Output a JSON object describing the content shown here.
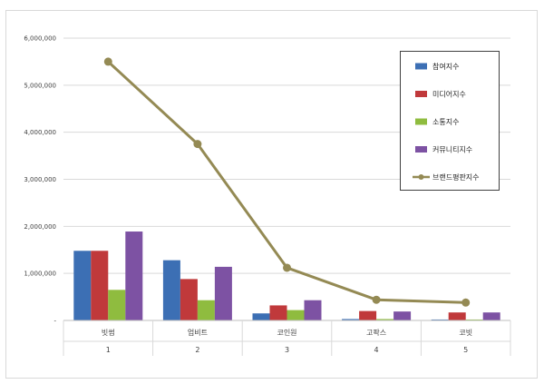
{
  "chart_data": {
    "type": "bar",
    "title": "",
    "xlabel": "",
    "ylabel": "",
    "categories": [
      "빗썸",
      "업비트",
      "코인원",
      "고팍스",
      "코빗"
    ],
    "category_index": [
      "1",
      "2",
      "3",
      "4",
      "5"
    ],
    "ylim": [
      0,
      6000000
    ],
    "y_ticks": [
      0,
      1000000,
      2000000,
      3000000,
      4000000,
      5000000,
      6000000
    ],
    "y_tick_labels": [
      "-",
      "1,000,000",
      "2,000,000",
      "3,000,000",
      "4,000,000",
      "5,000,000",
      "6,000,000"
    ],
    "grid": true,
    "legend_position": "top-right",
    "series": [
      {
        "name": "참여지수",
        "kind": "bar",
        "color": "#3c6fb4",
        "values": [
          1480000,
          1280000,
          150000,
          30000,
          20000
        ]
      },
      {
        "name": "미디어지수",
        "kind": "bar",
        "color": "#c0393b",
        "values": [
          1480000,
          880000,
          320000,
          200000,
          170000
        ]
      },
      {
        "name": "소통지수",
        "kind": "bar",
        "color": "#8fbc3f",
        "values": [
          650000,
          430000,
          220000,
          30000,
          20000
        ]
      },
      {
        "name": "커뮤니티지수",
        "kind": "bar",
        "color": "#7d52a3",
        "values": [
          1890000,
          1140000,
          430000,
          190000,
          170000
        ]
      },
      {
        "name": "브랜드평판지수",
        "kind": "line",
        "color": "#948a54",
        "values": [
          5500000,
          3750000,
          1120000,
          440000,
          380000
        ]
      }
    ]
  }
}
